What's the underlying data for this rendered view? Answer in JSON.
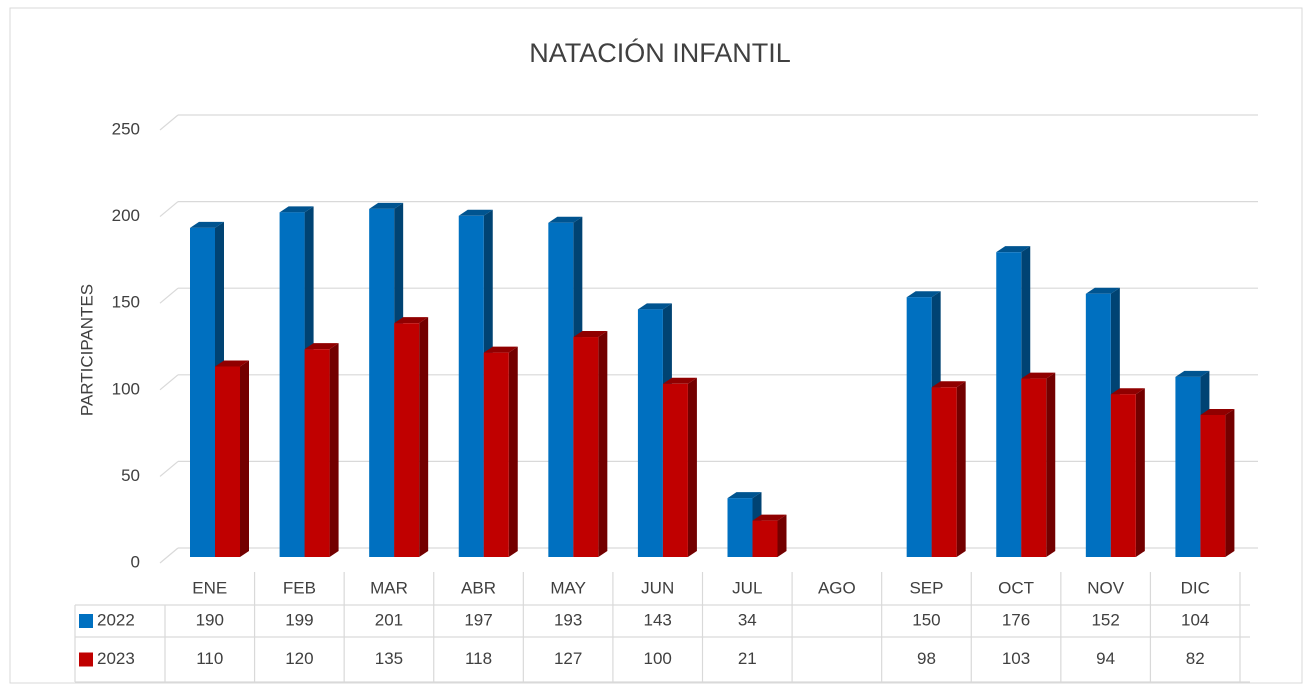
{
  "chart_data": {
    "type": "bar",
    "title": "NATACIÓN INFANTIL",
    "y_label": "PARTICIPANTES",
    "categories": [
      "ENE",
      "FEB",
      "MAR",
      "ABR",
      "MAY",
      "JUN",
      "JUL",
      "AGO",
      "SEP",
      "OCT",
      "NOV",
      "DIC"
    ],
    "series": [
      {
        "name": "2022",
        "color": "#0070c0",
        "values": [
          190,
          199,
          201,
          197,
          193,
          143,
          34,
          null,
          150,
          176,
          152,
          104
        ]
      },
      {
        "name": "2023",
        "color": "#c00000",
        "values": [
          110,
          120,
          135,
          118,
          127,
          100,
          21,
          null,
          98,
          103,
          94,
          82
        ]
      }
    ],
    "ylim": [
      0,
      250
    ],
    "yticks": [
      0,
      50,
      100,
      150,
      200,
      250
    ],
    "grid": true
  }
}
